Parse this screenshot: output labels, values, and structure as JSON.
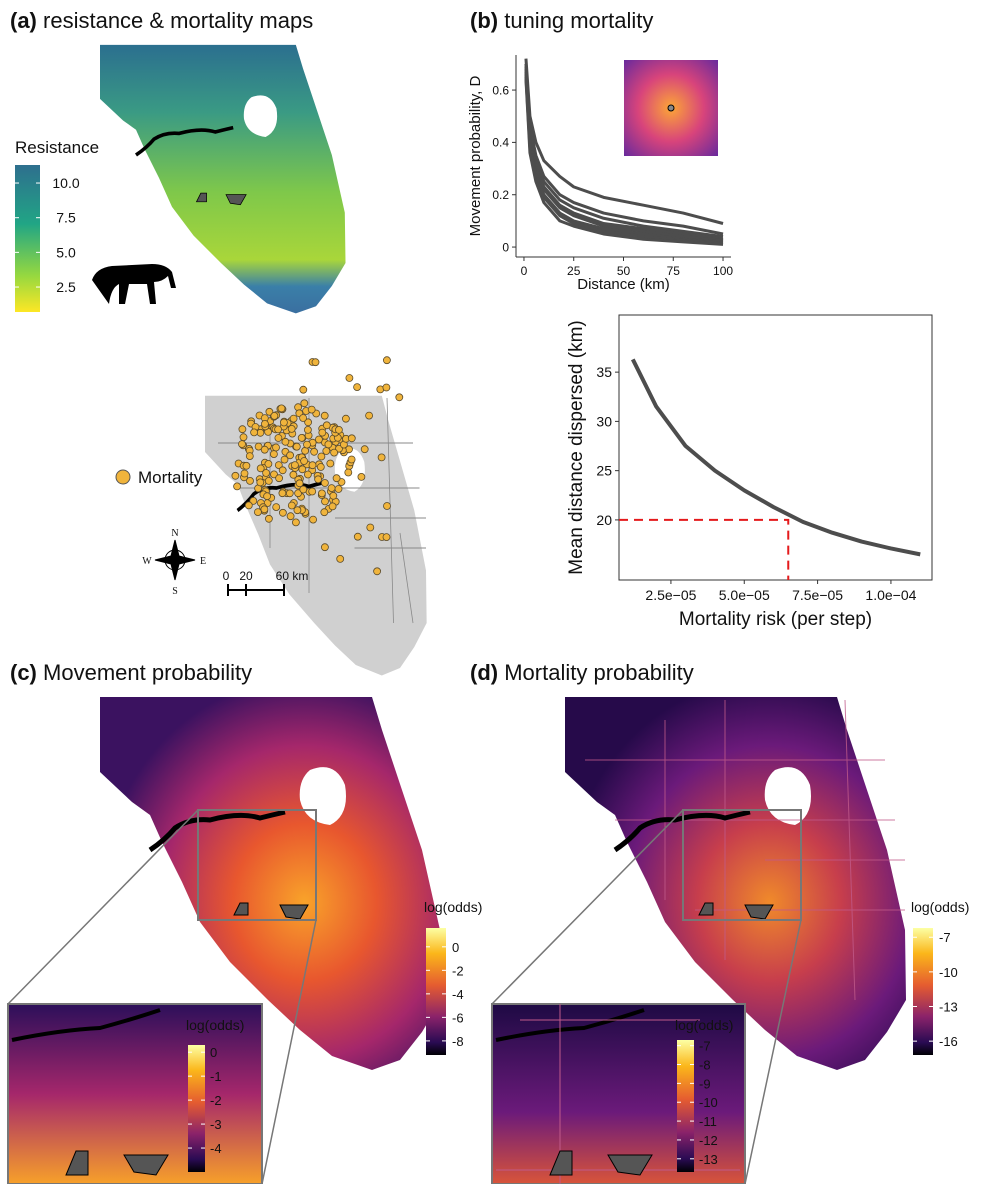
{
  "panels": [
    {
      "label": "(a)",
      "title": "resistance & mortality maps"
    },
    {
      "label": "(b)",
      "title": "tuning mortality"
    },
    {
      "label": "(c)",
      "title": "Movement probability"
    },
    {
      "label": "(d)",
      "title": "Mortality probability"
    }
  ],
  "legends": {
    "resistance": {
      "title": "Resistance",
      "lim": [
        0.7,
        11.3
      ],
      "ticks": [
        {
          "value": 10,
          "label": "10.0"
        },
        7.5,
        {
          "value": 5,
          "label": "5.0"
        },
        2.5
      ]
    },
    "mortality": "Mortality",
    "compass": [
      "N",
      "E",
      "S",
      "W"
    ],
    "scale_bar": [
      "0",
      "20",
      "60 km"
    ],
    "c_main": {
      "title": "log(odds)",
      "lim": [
        -9.2,
        1.6
      ],
      "ticks": [
        0,
        -2,
        -4,
        -6,
        -8
      ]
    },
    "c_inset": {
      "title": "log(odds)",
      "lim": [
        -5.0,
        0.3
      ],
      "ticks": [
        0,
        -1,
        -2,
        -3,
        -4
      ]
    },
    "d_main": {
      "title": "log(odds)",
      "lim": [
        -17.2,
        -6.2
      ],
      "ticks": [
        -7,
        -10,
        -13,
        -16
      ]
    },
    "d_inset": {
      "title": "log(odds)",
      "lim": [
        -13.7,
        -6.7
      ],
      "ticks": [
        -7,
        -8,
        -9,
        -10,
        -11,
        -12,
        -13
      ]
    }
  },
  "chart_data": [
    {
      "type": "line",
      "x_label": "Distance (km)",
      "y_label": "Movement probability, D",
      "x": [
        1,
        3,
        6,
        10,
        18,
        25,
        40,
        60,
        80,
        100
      ],
      "series": [
        {
          "color": "#4d4d4d",
          "values": [
            0.72,
            0.5,
            0.4,
            0.33,
            0.27,
            0.23,
            0.19,
            0.16,
            0.13,
            0.09
          ]
        },
        {
          "color": "#4d4d4d",
          "values": [
            0.7,
            0.46,
            0.35,
            0.27,
            0.2,
            0.17,
            0.13,
            0.1,
            0.08,
            0.05
          ]
        },
        {
          "color": "#4d4d4d",
          "values": [
            0.69,
            0.44,
            0.33,
            0.25,
            0.18,
            0.15,
            0.11,
            0.08,
            0.06,
            0.04
          ]
        },
        {
          "color": "#4d4d4d",
          "values": [
            0.68,
            0.42,
            0.31,
            0.23,
            0.16,
            0.13,
            0.09,
            0.07,
            0.05,
            0.03
          ]
        },
        {
          "color": "#4d4d4d",
          "values": [
            0.67,
            0.41,
            0.3,
            0.22,
            0.15,
            0.12,
            0.08,
            0.06,
            0.04,
            0.025
          ]
        },
        {
          "color": "#4d4d4d",
          "values": [
            0.66,
            0.4,
            0.28,
            0.2,
            0.13,
            0.1,
            0.07,
            0.05,
            0.03,
            0.02
          ]
        },
        {
          "color": "#4d4d4d",
          "values": [
            0.65,
            0.38,
            0.27,
            0.19,
            0.12,
            0.09,
            0.06,
            0.04,
            0.025,
            0.015
          ]
        },
        {
          "color": "#4d4d4d",
          "values": [
            0.64,
            0.36,
            0.25,
            0.17,
            0.1,
            0.08,
            0.05,
            0.03,
            0.02,
            0.01
          ]
        }
      ],
      "xlim": [
        -4,
        104
      ],
      "ylim": [
        -0.038,
        0.734
      ],
      "xticks": [
        0,
        25,
        50,
        75,
        100
      ],
      "yticks": [
        0,
        {
          "value": 0.2,
          "label": "0.2"
        },
        {
          "value": 0.4,
          "label": "0.4"
        },
        {
          "value": 0.6,
          "label": "0.6"
        }
      ],
      "box": false
    },
    {
      "type": "line",
      "x_label": "Mortality risk (per step)",
      "y_label": "Mean distance dispersed (km)",
      "x": [
        1.2e-05,
        2e-05,
        3e-05,
        4e-05,
        5e-05,
        6e-05,
        7e-05,
        8e-05,
        9e-05,
        0.0001,
        0.00011
      ],
      "series": [
        {
          "color": "#4d4d4d",
          "values": [
            36.3,
            31.5,
            27.5,
            25,
            23,
            21.3,
            19.8,
            18.7,
            17.8,
            17.1,
            16.5
          ]
        }
      ],
      "reference": {
        "x": 6.5e-05,
        "y": 20,
        "color": "#e41a1c"
      },
      "xlim": [
        7.3e-06,
        0.000114
      ],
      "ylim": [
        13.9,
        40.8
      ],
      "xticks": [
        {
          "value": 2.5e-05,
          "label": "2.5e−05"
        },
        {
          "value": 5e-05,
          "label": "5.0e−05"
        },
        {
          "value": 7.5e-05,
          "label": "7.5e−05"
        },
        {
          "value": 0.0001,
          "label": "1.0e−04"
        }
      ],
      "yticks": [
        20,
        25,
        30,
        35
      ],
      "box": true
    }
  ]
}
